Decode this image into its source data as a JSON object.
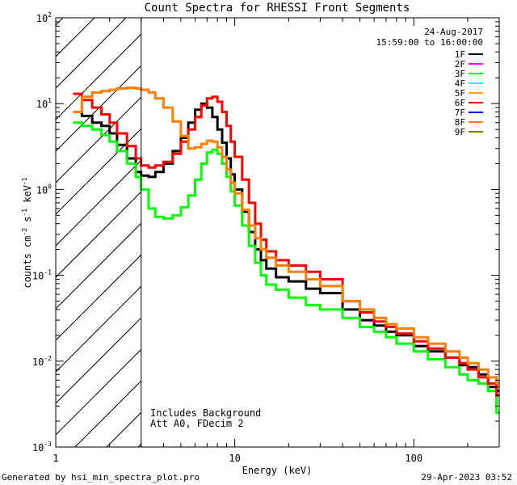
{
  "chart_data": {
    "type": "line",
    "title": "Count Spectra for RHESSI Front Segments",
    "xlabel": "Energy (keV)",
    "ylabel_base": "counts cm",
    "ylabel_exp1": "-2",
    "ylabel_mid": " s",
    "ylabel_exp2": "-1",
    "ylabel_end": " keV",
    "ylabel_exp3": "-1",
    "x_scale": "log",
    "y_scale": "log",
    "xlim": [
      1,
      300
    ],
    "ylim": [
      0.001,
      100
    ],
    "x_ticks": [
      {
        "value": 1,
        "label": "1"
      },
      {
        "value": 10,
        "label": "10"
      },
      {
        "value": 100,
        "label": "100"
      }
    ],
    "y_ticks": [
      {
        "value": 100,
        "base": "10",
        "exp": "2"
      },
      {
        "value": 10,
        "base": "10",
        "exp": "1"
      },
      {
        "value": 1,
        "base": "10",
        "exp": "0"
      },
      {
        "value": 0.1,
        "base": "10",
        "exp": "-1"
      },
      {
        "value": 0.01,
        "base": "10",
        "exp": "-2"
      },
      {
        "value": 0.001,
        "base": "10",
        "exp": "-3"
      }
    ],
    "hatched_region": [
      1,
      3
    ],
    "legend_date": "24-Aug-2017",
    "legend_time": "15:59:00 to 16:00:00",
    "annotation_line1": "Includes Background",
    "annotation_line2": "Att A0, FDecim 2",
    "legend": [
      {
        "name": "1F",
        "color": "#000000"
      },
      {
        "name": "2F",
        "color": "#ff00ff"
      },
      {
        "name": "3F",
        "color": "#00ff00"
      },
      {
        "name": "4F",
        "color": "#00ffff"
      },
      {
        "name": "5F",
        "color": "#ffa500"
      },
      {
        "name": "6F",
        "color": "#ff0000"
      },
      {
        "name": "7F",
        "color": "#0000ff"
      },
      {
        "name": "8F",
        "color": "#ff7f00"
      },
      {
        "name": "9F",
        "color": "#808000"
      }
    ],
    "series": [
      {
        "name": "1F",
        "color": "#000000",
        "points": [
          [
            1.25,
            8.0
          ],
          [
            1.4,
            7.2
          ],
          [
            1.6,
            6.0
          ],
          [
            1.8,
            5.5
          ],
          [
            2.0,
            4.5
          ],
          [
            2.2,
            3.3
          ],
          [
            2.5,
            2.3
          ],
          [
            2.8,
            1.6
          ],
          [
            3.0,
            1.45
          ],
          [
            3.3,
            1.4
          ],
          [
            3.6,
            1.6
          ],
          [
            4.0,
            2.0
          ],
          [
            4.5,
            2.8
          ],
          [
            5.0,
            4.0
          ],
          [
            5.5,
            6.0
          ],
          [
            6.0,
            8.5
          ],
          [
            6.5,
            10.0
          ],
          [
            7.0,
            9.0
          ],
          [
            7.5,
            7.0
          ],
          [
            8.0,
            5.0
          ],
          [
            8.5,
            3.5
          ],
          [
            9.0,
            2.3
          ],
          [
            9.5,
            1.5
          ],
          [
            10.0,
            1.0
          ],
          [
            11.0,
            0.55
          ],
          [
            12.0,
            0.32
          ],
          [
            13.0,
            0.2
          ],
          [
            14.0,
            0.15
          ],
          [
            15.0,
            0.12
          ],
          [
            17.0,
            0.095
          ],
          [
            20.0,
            0.085
          ],
          [
            25.0,
            0.07
          ],
          [
            30.0,
            0.062
          ],
          [
            40.0,
            0.04
          ],
          [
            50.0,
            0.03
          ],
          [
            60.0,
            0.026
          ],
          [
            70.0,
            0.022
          ],
          [
            80.0,
            0.02
          ],
          [
            100.0,
            0.015
          ],
          [
            120.0,
            0.013
          ],
          [
            150.0,
            0.011
          ],
          [
            180.0,
            0.009
          ],
          [
            200.0,
            0.0085
          ],
          [
            230.0,
            0.007
          ],
          [
            260.0,
            0.005
          ],
          [
            290.0,
            0.0045
          ]
        ]
      },
      {
        "name": "3F",
        "color": "#00ff00",
        "points": [
          [
            1.25,
            6.0
          ],
          [
            1.4,
            5.5
          ],
          [
            1.6,
            5.0
          ],
          [
            1.8,
            4.3
          ],
          [
            2.0,
            3.6
          ],
          [
            2.2,
            2.8
          ],
          [
            2.5,
            2.0
          ],
          [
            2.8,
            1.4
          ],
          [
            3.0,
            1.0
          ],
          [
            3.3,
            0.6
          ],
          [
            3.6,
            0.48
          ],
          [
            4.0,
            0.46
          ],
          [
            4.5,
            0.5
          ],
          [
            5.0,
            0.62
          ],
          [
            5.5,
            0.85
          ],
          [
            6.0,
            1.3
          ],
          [
            6.5,
            2.0
          ],
          [
            7.0,
            2.7
          ],
          [
            7.5,
            2.9
          ],
          [
            8.0,
            2.6
          ],
          [
            8.5,
            2.0
          ],
          [
            9.0,
            1.4
          ],
          [
            9.5,
            0.95
          ],
          [
            10.0,
            0.65
          ],
          [
            11.0,
            0.38
          ],
          [
            12.0,
            0.22
          ],
          [
            13.0,
            0.14
          ],
          [
            14.0,
            0.1
          ],
          [
            15.0,
            0.078
          ],
          [
            17.0,
            0.068
          ],
          [
            20.0,
            0.055
          ],
          [
            25.0,
            0.045
          ],
          [
            30.0,
            0.04
          ],
          [
            40.0,
            0.032
          ],
          [
            50.0,
            0.025
          ],
          [
            60.0,
            0.022
          ],
          [
            70.0,
            0.019
          ],
          [
            80.0,
            0.016
          ],
          [
            100.0,
            0.013
          ],
          [
            120.0,
            0.0105
          ],
          [
            150.0,
            0.0085
          ],
          [
            180.0,
            0.007
          ],
          [
            200.0,
            0.006
          ],
          [
            230.0,
            0.0055
          ],
          [
            260.0,
            0.0045
          ],
          [
            290.0,
            0.0025
          ]
        ]
      },
      {
        "name": "6F",
        "color": "#ff0000",
        "points": [
          [
            1.25,
            13.0
          ],
          [
            1.4,
            11.0
          ],
          [
            1.6,
            9.0
          ],
          [
            1.8,
            7.5
          ],
          [
            2.0,
            6.0
          ],
          [
            2.2,
            4.5
          ],
          [
            2.5,
            3.2
          ],
          [
            2.8,
            2.3
          ],
          [
            3.0,
            1.9
          ],
          [
            3.3,
            1.8
          ],
          [
            3.6,
            1.9
          ],
          [
            4.0,
            2.1
          ],
          [
            4.5,
            2.6
          ],
          [
            5.0,
            3.6
          ],
          [
            5.5,
            5.0
          ],
          [
            6.0,
            7.0
          ],
          [
            6.5,
            9.5
          ],
          [
            7.0,
            11.5
          ],
          [
            7.5,
            12.0
          ],
          [
            8.0,
            10.5
          ],
          [
            8.5,
            8.0
          ],
          [
            9.0,
            5.5
          ],
          [
            9.5,
            3.6
          ],
          [
            10.0,
            2.4
          ],
          [
            11.0,
            1.3
          ],
          [
            12.0,
            0.7
          ],
          [
            13.0,
            0.4
          ],
          [
            14.0,
            0.26
          ],
          [
            15.0,
            0.19
          ],
          [
            17.0,
            0.15
          ],
          [
            20.0,
            0.13
          ],
          [
            25.0,
            0.11
          ],
          [
            30.0,
            0.09
          ],
          [
            40.0,
            0.05
          ],
          [
            50.0,
            0.037
          ],
          [
            60.0,
            0.029
          ],
          [
            70.0,
            0.025
          ],
          [
            80.0,
            0.021
          ],
          [
            100.0,
            0.017
          ],
          [
            120.0,
            0.014
          ],
          [
            150.0,
            0.011
          ],
          [
            180.0,
            0.0095
          ],
          [
            200.0,
            0.008
          ],
          [
            230.0,
            0.0065
          ],
          [
            260.0,
            0.0055
          ],
          [
            290.0,
            0.004
          ]
        ]
      },
      {
        "name": "8F",
        "color": "#ff7f00",
        "points": [
          [
            1.25,
            8.0
          ],
          [
            1.4,
            12.0
          ],
          [
            1.6,
            13.5
          ],
          [
            1.8,
            14.0
          ],
          [
            2.0,
            14.5
          ],
          [
            2.2,
            15.0
          ],
          [
            2.5,
            15.3
          ],
          [
            2.8,
            15.0
          ],
          [
            3.0,
            14.5
          ],
          [
            3.3,
            13.5
          ],
          [
            3.6,
            11.5
          ],
          [
            4.0,
            9.0
          ],
          [
            4.5,
            6.2
          ],
          [
            5.0,
            4.2
          ],
          [
            5.5,
            3.0
          ],
          [
            6.0,
            3.1
          ],
          [
            6.5,
            3.4
          ],
          [
            7.0,
            3.7
          ],
          [
            7.5,
            3.6
          ],
          [
            8.0,
            3.1
          ],
          [
            8.5,
            2.4
          ],
          [
            9.0,
            1.7
          ],
          [
            9.5,
            1.2
          ],
          [
            10.0,
            0.9
          ],
          [
            11.0,
            0.58
          ],
          [
            12.0,
            0.38
          ],
          [
            13.0,
            0.27
          ],
          [
            14.0,
            0.2
          ],
          [
            15.0,
            0.16
          ],
          [
            17.0,
            0.13
          ],
          [
            20.0,
            0.11
          ],
          [
            25.0,
            0.09
          ],
          [
            30.0,
            0.075
          ],
          [
            40.0,
            0.05
          ],
          [
            50.0,
            0.04
          ],
          [
            60.0,
            0.032
          ],
          [
            70.0,
            0.027
          ],
          [
            80.0,
            0.024
          ],
          [
            100.0,
            0.019
          ],
          [
            120.0,
            0.016
          ],
          [
            150.0,
            0.013
          ],
          [
            180.0,
            0.011
          ],
          [
            200.0,
            0.0095
          ],
          [
            230.0,
            0.008
          ],
          [
            260.0,
            0.0065
          ],
          [
            290.0,
            0.0055
          ]
        ]
      }
    ]
  },
  "footer": {
    "left": "Generated by hsi_min_spectra_plot.pro",
    "right": "29-Apr-2023 03:52"
  }
}
